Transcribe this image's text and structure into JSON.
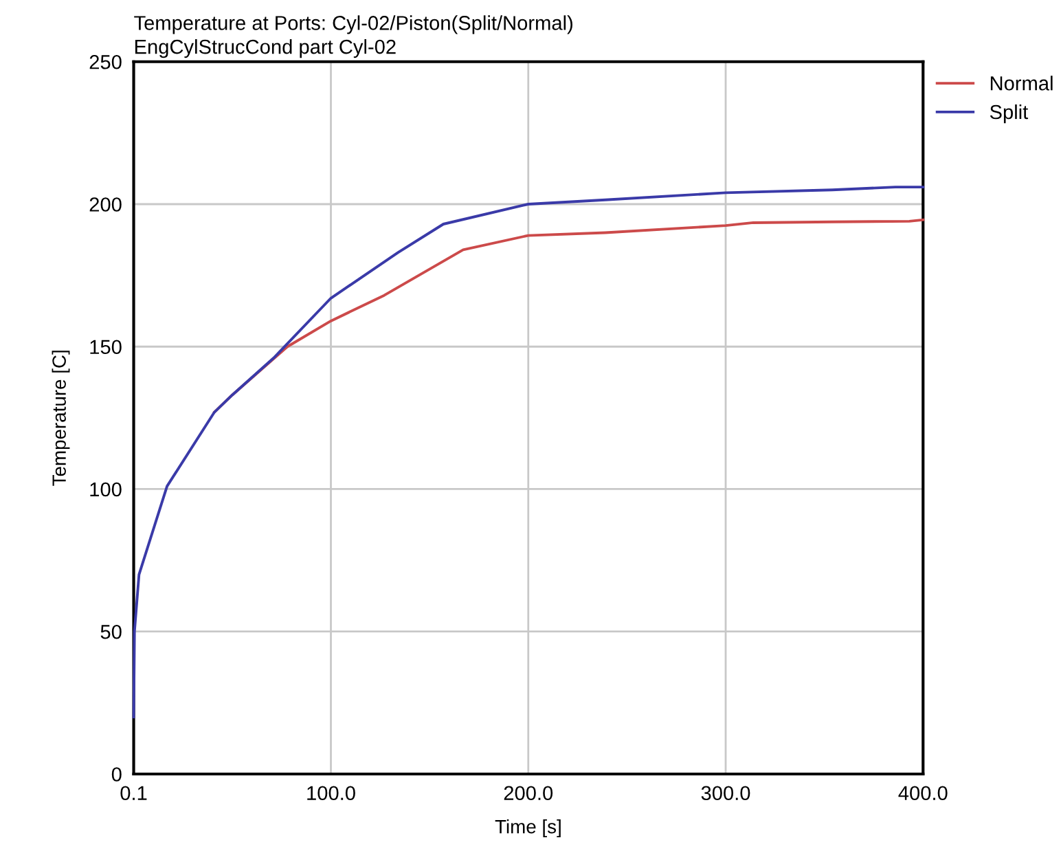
{
  "chart_data": {
    "type": "line",
    "title": "Temperature at Ports: Cyl-02/Piston(Split/Normal)",
    "subtitle": "EngCylStrucCond part Cyl-02",
    "xlabel": "Time [s]",
    "ylabel": "Temperature [C]",
    "xlim": [
      0.1,
      400
    ],
    "xticks": [
      {
        "value": 0.1,
        "label": "0.1"
      },
      {
        "value": 100,
        "label": "100.0"
      },
      {
        "value": 200,
        "label": "200.0"
      },
      {
        "value": 300,
        "label": "300.0"
      },
      {
        "value": 400,
        "label": "400.0"
      }
    ],
    "ylim": [
      0,
      250
    ],
    "yticks": [
      0,
      50,
      100,
      150,
      200,
      250
    ],
    "grid": true,
    "legend": "top right",
    "marker": "none",
    "line_style": "solid",
    "series": [
      {
        "name": "Normal",
        "color": "#cc4a4a",
        "x": [
          41,
          50,
          78,
          100,
          127,
          167,
          200,
          239,
          300,
          314,
          354,
          393,
          400
        ],
        "values": [
          127,
          133,
          150,
          159,
          168,
          184,
          189,
          190,
          192.5,
          193.5,
          193.8,
          194,
          194.5
        ]
      },
      {
        "name": "Split",
        "color": "#3a3aa8",
        "x": [
          0.1,
          0.5,
          2.8,
          17,
          41,
          50,
          71,
          100,
          134,
          157,
          200,
          239,
          300,
          354,
          386,
          400
        ],
        "values": [
          20,
          50,
          70,
          101,
          127,
          133,
          146,
          167,
          183,
          193,
          200,
          201.5,
          204,
          205,
          206,
          206
        ]
      }
    ]
  }
}
